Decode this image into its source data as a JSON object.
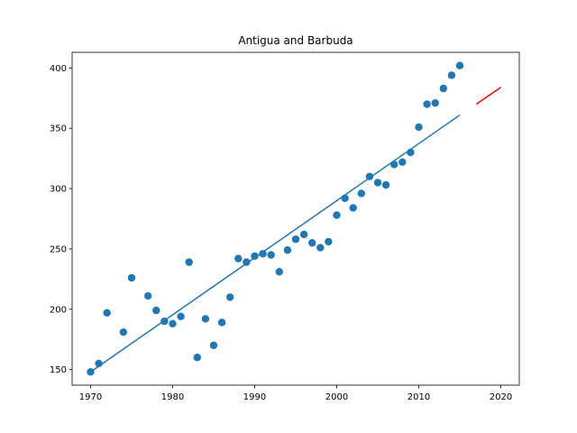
{
  "chart_data": {
    "type": "scatter",
    "title": "Antigua and Barbuda",
    "xlabel": "",
    "ylabel": "",
    "xlim": [
      1967.75,
      2022.25
    ],
    "ylim": [
      137,
      413
    ],
    "x_ticks": [
      1970,
      1980,
      1990,
      2000,
      2010,
      2020
    ],
    "y_ticks": [
      150,
      200,
      250,
      300,
      350,
      400
    ],
    "grid": false,
    "series": [
      {
        "kind": "scatter",
        "color": "#1f77b4",
        "points": [
          [
            1970,
            148
          ],
          [
            1971,
            155
          ],
          [
            1972,
            197
          ],
          [
            1974,
            181
          ],
          [
            1975,
            226
          ],
          [
            1977,
            211
          ],
          [
            1978,
            199
          ],
          [
            1979,
            190
          ],
          [
            1980,
            188
          ],
          [
            1981,
            194
          ],
          [
            1982,
            239
          ],
          [
            1983,
            160
          ],
          [
            1984,
            192
          ],
          [
            1985,
            170
          ],
          [
            1986,
            189
          ],
          [
            1987,
            210
          ],
          [
            1988,
            242
          ],
          [
            1989,
            239
          ],
          [
            1990,
            244
          ],
          [
            1991,
            246
          ],
          [
            1992,
            245
          ],
          [
            1993,
            231
          ],
          [
            1994,
            249
          ],
          [
            1995,
            258
          ],
          [
            1996,
            262
          ],
          [
            1997,
            255
          ],
          [
            1998,
            251
          ],
          [
            1999,
            256
          ],
          [
            2000,
            278
          ],
          [
            2001,
            292
          ],
          [
            2002,
            284
          ],
          [
            2003,
            296
          ],
          [
            2004,
            310
          ],
          [
            2005,
            305
          ],
          [
            2006,
            303
          ],
          [
            2007,
            320
          ],
          [
            2008,
            322
          ],
          [
            2009,
            330
          ],
          [
            2010,
            351
          ],
          [
            2011,
            370
          ],
          [
            2012,
            371
          ],
          [
            2013,
            383
          ],
          [
            2014,
            394
          ],
          [
            2015,
            402
          ]
        ]
      },
      {
        "kind": "line",
        "color": "#1f77b4",
        "points": [
          [
            1970,
            148
          ],
          [
            2015,
            361
          ]
        ]
      },
      {
        "kind": "line",
        "color": "#ff0000",
        "points": [
          [
            2017,
            370
          ],
          [
            2020,
            384
          ]
        ]
      }
    ]
  }
}
